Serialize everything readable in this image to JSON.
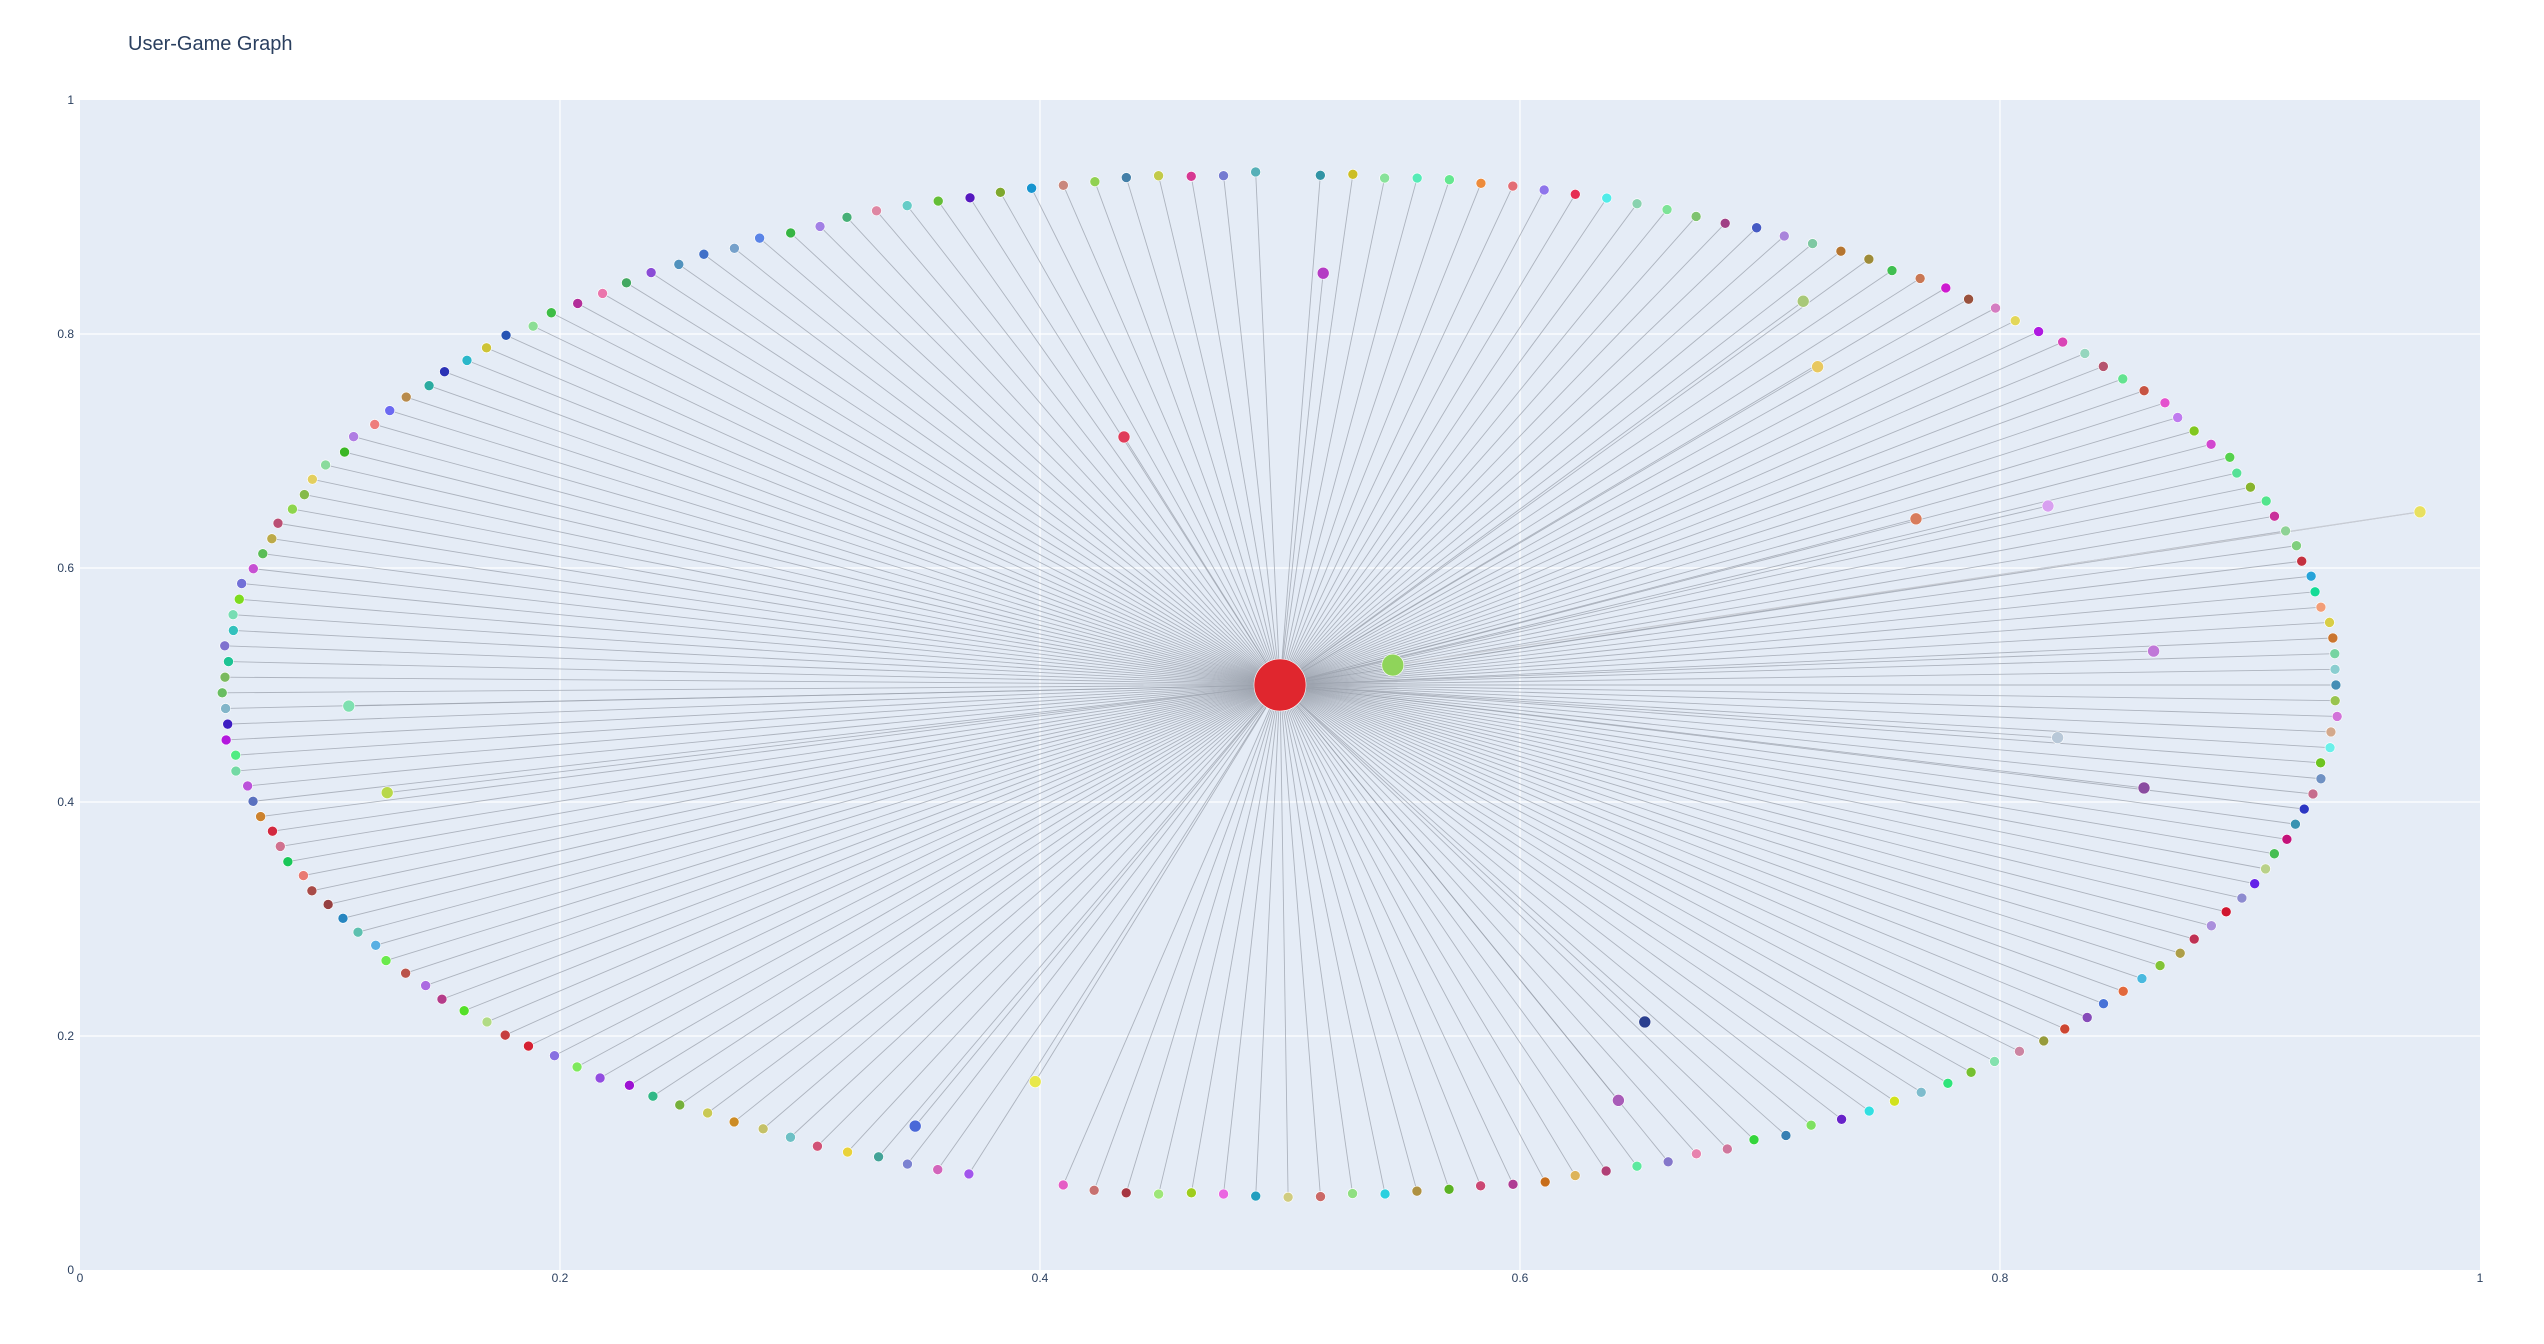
{
  "chart_data": {
    "type": "scatter",
    "title": "User-Game Graph",
    "xlabel": "",
    "ylabel": "",
    "xlim": [
      0,
      1
    ],
    "ylim": [
      0,
      1
    ],
    "grid": true,
    "x_ticks": [
      {
        "value": 0,
        "label": "0"
      },
      {
        "value": 0.2,
        "label": "0.2"
      },
      {
        "value": 0.4,
        "label": "0.4"
      },
      {
        "value": 0.6,
        "label": "0.6"
      },
      {
        "value": 0.8,
        "label": "0.8"
      },
      {
        "value": 1,
        "label": "1"
      }
    ],
    "y_ticks": [
      {
        "value": 0,
        "label": "0"
      },
      {
        "value": 0.2,
        "label": "0.2"
      },
      {
        "value": 0.4,
        "label": "0.4"
      },
      {
        "value": 0.6,
        "label": "0.6"
      },
      {
        "value": 0.8,
        "label": "0.8"
      },
      {
        "value": 1,
        "label": "1"
      }
    ],
    "background_color": "#e5ecf6",
    "edge_color": "#9aa0ab",
    "hub_node": {
      "x": 0.5,
      "y": 0.5,
      "color": "#e0262e",
      "size": "large"
    },
    "secondary_node": {
      "x": 0.547,
      "y": 0.517,
      "color": "#8fd45a",
      "size": "medium"
    },
    "ring": {
      "center_x": 0.5,
      "center_y": 0.5,
      "radius_x": 0.44,
      "radius_y": 0.437,
      "node_count": 205
    },
    "outlier_nodes": [
      {
        "x": 0.518,
        "y": 0.852,
        "color": "#b43cc4"
      },
      {
        "x": 0.435,
        "y": 0.712,
        "color": "#e03c5a"
      },
      {
        "x": 0.112,
        "y": 0.482,
        "color": "#7fe0b0"
      },
      {
        "x": 0.128,
        "y": 0.408,
        "color": "#b8d84a"
      },
      {
        "x": 0.348,
        "y": 0.123,
        "color": "#4a68d8"
      },
      {
        "x": 0.398,
        "y": 0.161,
        "color": "#e8e84a"
      },
      {
        "x": 0.652,
        "y": 0.212,
        "color": "#2a3f8f"
      },
      {
        "x": 0.641,
        "y": 0.145,
        "color": "#a85cb8"
      },
      {
        "x": 0.718,
        "y": 0.828,
        "color": "#a8c878"
      },
      {
        "x": 0.724,
        "y": 0.772,
        "color": "#e8c860"
      },
      {
        "x": 0.765,
        "y": 0.642,
        "color": "#d87c5c"
      },
      {
        "x": 0.82,
        "y": 0.653,
        "color": "#d8a0f0"
      },
      {
        "x": 0.864,
        "y": 0.529,
        "color": "#c078d8"
      },
      {
        "x": 0.824,
        "y": 0.455,
        "color": "#b8c8d8"
      },
      {
        "x": 0.86,
        "y": 0.412,
        "color": "#8a4ca0"
      },
      {
        "x": 0.975,
        "y": 0.648,
        "color": "#e8e060"
      }
    ]
  }
}
